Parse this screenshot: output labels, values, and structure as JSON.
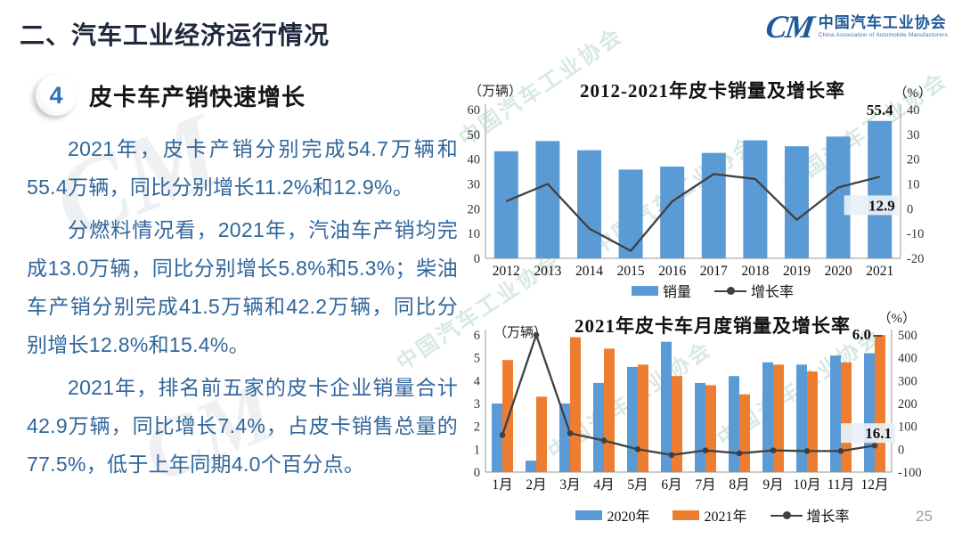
{
  "header": {
    "section_title": "二、汽车工业经济运行情况",
    "logo": {
      "monogram": "CM",
      "org_cn": "中国汽车工业协会",
      "org_en": "China Association of Automobile Manufacturers"
    }
  },
  "topic": {
    "number": "4",
    "title": "皮卡车产销快速增长"
  },
  "paragraphs": [
    "2021年，皮卡产销分别完成54.7万辆和55.4万辆，同比分别增长11.2%和12.9%。",
    "分燃料情况看，2021年，汽油车产销均完成13.0万辆，同比分别增长5.8%和5.3%；柴油车产销分别完成41.5万辆和42.2万辆，同比分别增长12.8%和15.4%。",
    "2021年，排名前五家的皮卡企业销量合计42.9万辆，同比增长7.4%，占皮卡销售总量的77.5%，低于上年同期4.0个百分点。"
  ],
  "watermark_text": "中国汽车工业协会",
  "page_number": "25",
  "colors": {
    "bar_blue": "#5B9BD5",
    "bar_orange": "#ED7D31",
    "line_dark": "#404040",
    "brand_blue": "#1E5A96"
  },
  "chart_data": [
    {
      "type": "bar",
      "title": "2012-2021年皮卡销量及增长率",
      "unit_left": "（万辆）",
      "unit_right": "（%）",
      "categories": [
        "2012",
        "2013",
        "2014",
        "2015",
        "2016",
        "2017",
        "2018",
        "2019",
        "2020",
        "2021"
      ],
      "series": [
        {
          "name": "销量",
          "type": "bar",
          "axis": "left",
          "color": "#5B9BD5",
          "values": [
            43.2,
            47.3,
            43.6,
            35.8,
            37.0,
            42.5,
            47.6,
            45.2,
            49.1,
            55.4
          ]
        },
        {
          "name": "增长率",
          "type": "line",
          "axis": "right",
          "color": "#404040",
          "markers": false,
          "values": [
            3.0,
            10.0,
            -8.0,
            -17.0,
            3.0,
            14.0,
            12.0,
            -4.5,
            8.6,
            12.9
          ]
        }
      ],
      "left_axis": {
        "min": 0,
        "max": 60,
        "step": 10
      },
      "right_axis": {
        "min": -20,
        "max": 40,
        "step": 10
      },
      "grid": false,
      "legend_position": "bottom",
      "legend": [
        {
          "label": "销量",
          "swatch": "bar",
          "color": "#5B9BD5"
        },
        {
          "label": "增长率",
          "swatch": "line",
          "color": "#404040"
        }
      ],
      "annotations": [
        {
          "text": "55.4",
          "series": "销量",
          "category": "2021",
          "placement": "above-bar",
          "boxed": false
        },
        {
          "text": "12.9",
          "series": "增长率",
          "category": "2021",
          "placement": "line-left",
          "boxed": true
        }
      ]
    },
    {
      "type": "bar",
      "title": "2021年皮卡车月度销量及增长率",
      "unit_left": "（万辆）",
      "unit_right": "（%）",
      "categories": [
        "1月",
        "2月",
        "3月",
        "4月",
        "5月",
        "6月",
        "7月",
        "8月",
        "9月",
        "10月",
        "11月",
        "12月"
      ],
      "series": [
        {
          "name": "2020年",
          "type": "bar",
          "axis": "left",
          "color": "#5B9BD5",
          "values": [
            3.0,
            0.5,
            3.0,
            3.9,
            4.6,
            5.7,
            3.9,
            4.2,
            4.8,
            4.7,
            5.1,
            5.2
          ]
        },
        {
          "name": "2021年",
          "type": "bar",
          "axis": "left",
          "color": "#ED7D31",
          "values": [
            4.9,
            3.3,
            5.9,
            5.4,
            4.7,
            4.2,
            3.8,
            3.4,
            4.7,
            4.4,
            4.8,
            6.0
          ]
        },
        {
          "name": "增长率",
          "type": "line",
          "axis": "right",
          "color": "#404040",
          "markers": true,
          "values": [
            62,
            500,
            70,
            38,
            0,
            -25,
            -5,
            -18,
            -5,
            -8,
            -8,
            16.1
          ]
        }
      ],
      "left_axis": {
        "min": 0,
        "max": 6,
        "step": 1
      },
      "right_axis": {
        "min": -100,
        "max": 500,
        "step": 100
      },
      "grid": false,
      "legend_position": "bottom",
      "legend": [
        {
          "label": "2020年",
          "swatch": "bar",
          "color": "#5B9BD5"
        },
        {
          "label": "2021年",
          "swatch": "bar",
          "color": "#ED7D31"
        },
        {
          "label": "增长率",
          "swatch": "line",
          "color": "#404040"
        }
      ],
      "annotations": [
        {
          "text": "6.0",
          "series": "2021年",
          "category": "12月",
          "placement": "above-bar-left",
          "boxed": false,
          "dash": true
        },
        {
          "text": "16.1",
          "series": "增长率",
          "category": "12月",
          "placement": "line-left",
          "boxed": true
        }
      ]
    }
  ]
}
